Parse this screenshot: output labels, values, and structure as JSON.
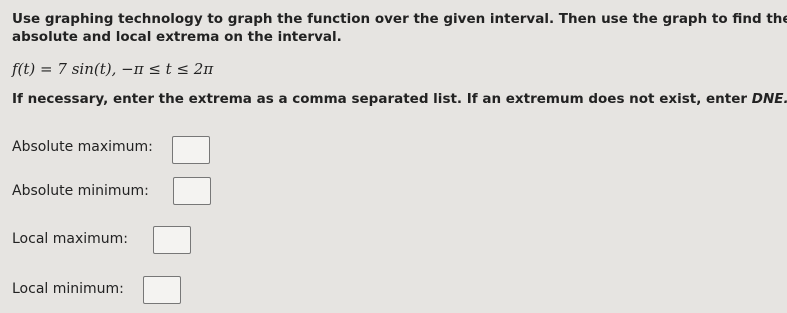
{
  "instructions": [
    "Use graphing technology to graph the function over the given interval. Then use the graph to find the",
    "absolute and local extrema on the interval."
  ],
  "formula": "f(t) = 7 sin(t),  −π ≤ t ≤ 2π",
  "note": {
    "text": "If necessary, enter the extrema as a comma separated list. If an extremum does not exist, enter ",
    "emphasis": "DNE."
  },
  "fields": [
    {
      "label": "Absolute maximum:"
    },
    {
      "label": "Absolute minimum:"
    },
    {
      "label": "Local maximum:"
    },
    {
      "label": "Local minimum:"
    }
  ]
}
